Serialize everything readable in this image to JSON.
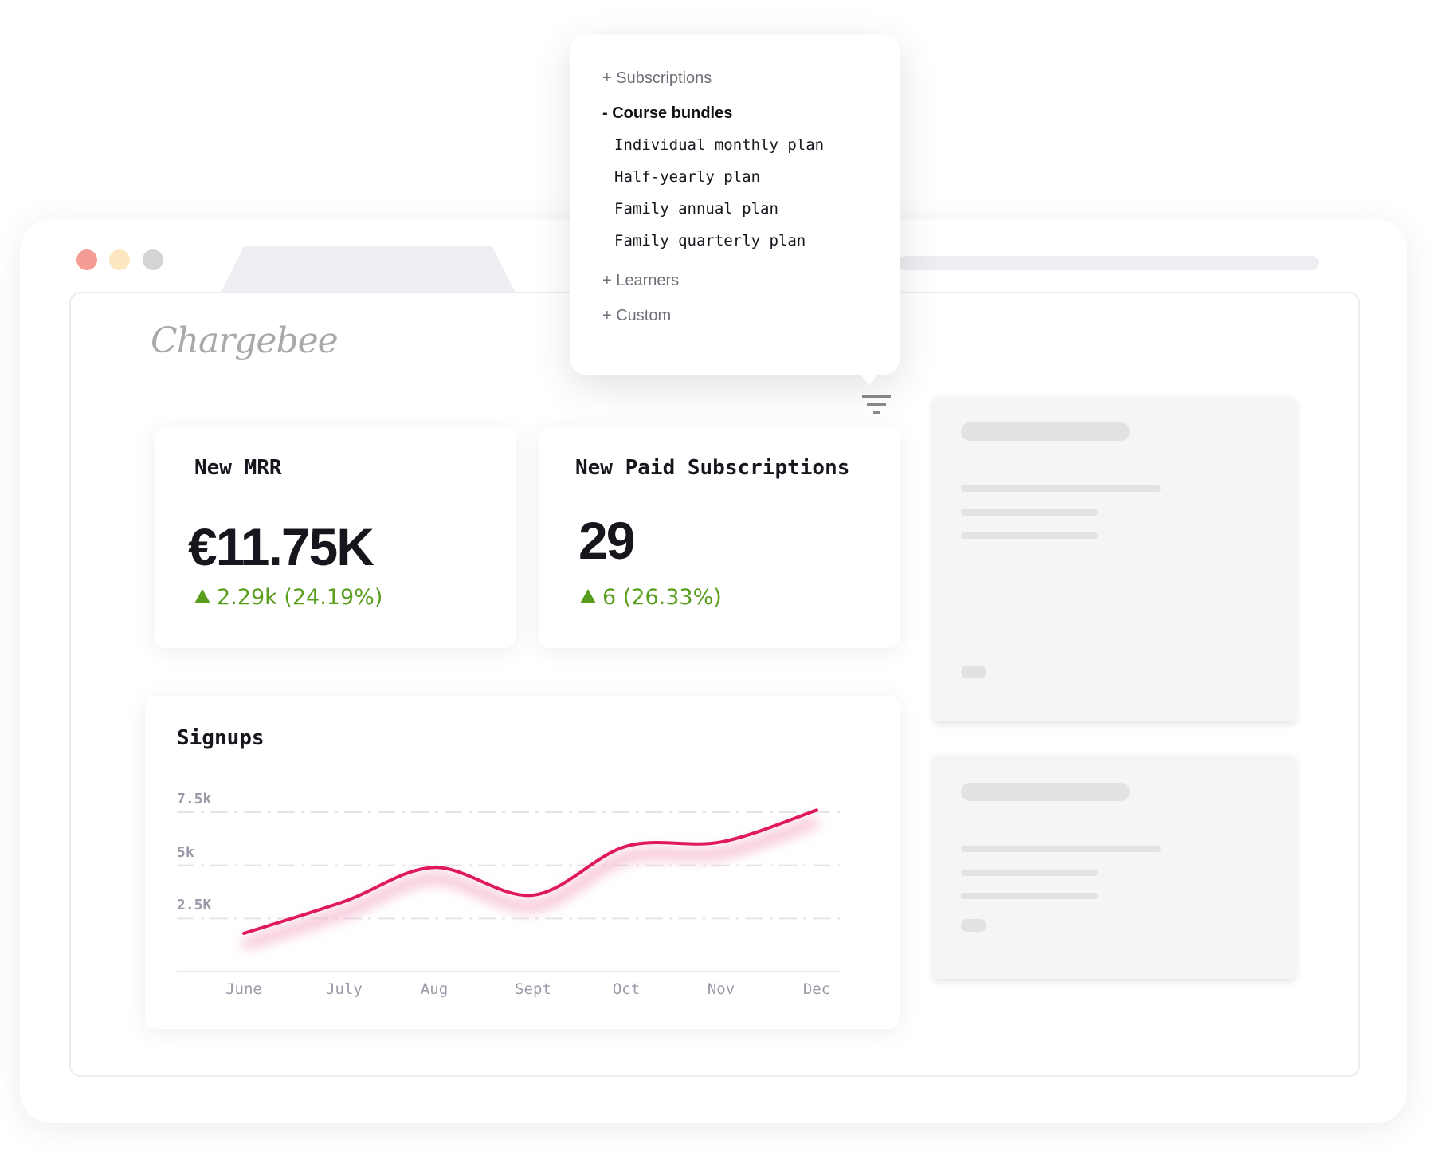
{
  "brand": {
    "logo_text": "Chargebee"
  },
  "window": {
    "traffic_lights": [
      "#f59c95",
      "#fde7c0",
      "#d4d4d4"
    ]
  },
  "filter_menu": {
    "groups": [
      {
        "label": "+ Subscriptions"
      },
      {
        "label": "- Course bundles",
        "expanded": true,
        "items": [
          "Individual monthly plan",
          "Half-yearly plan",
          "Family annual plan",
          "Family quarterly plan"
        ]
      },
      {
        "label": "+ Learners"
      },
      {
        "label": "+ Custom"
      }
    ],
    "icon": "filter-icon"
  },
  "metrics": [
    {
      "title": "New MRR",
      "value": "€11.75K",
      "delta": "2.29k (24.19%)",
      "trend": "up"
    },
    {
      "title": "New Paid Subscriptions",
      "value": "29",
      "delta": "6 (26.33%)",
      "trend": "up"
    }
  ],
  "colors": {
    "positive": "#5a9e1e",
    "line": "#e0195f",
    "text": "#16161d"
  },
  "chart_data": {
    "type": "line",
    "title": "Signups",
    "categories": [
      "June",
      "July",
      "Aug",
      "Sept",
      "Oct",
      "Nov",
      "Dec"
    ],
    "values": [
      1800,
      3300,
      4900,
      3600,
      5900,
      6100,
      7600
    ],
    "yticks": [
      {
        "value": 2500,
        "label": "2.5K"
      },
      {
        "value": 5000,
        "label": "5k"
      },
      {
        "value": 7500,
        "label": "7.5k"
      }
    ],
    "ylim": [
      0,
      7500
    ],
    "grid": true,
    "smooth": true
  }
}
